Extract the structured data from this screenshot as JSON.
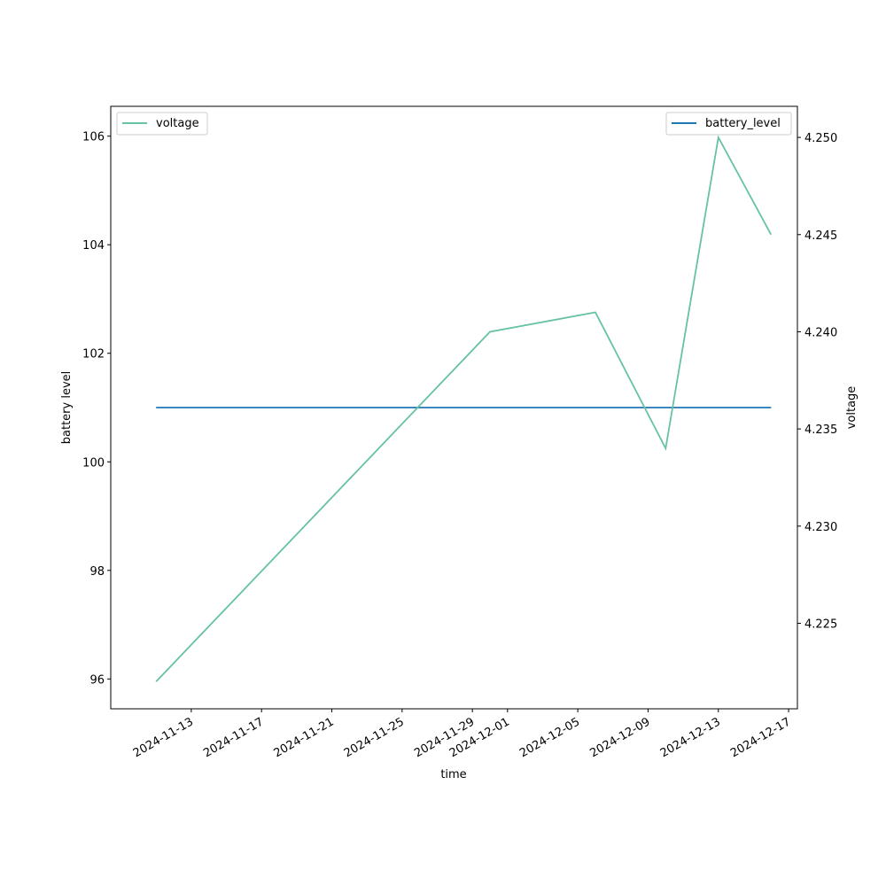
{
  "chart_data": {
    "type": "line",
    "xlabel": "time",
    "ylabel": "battery level",
    "y2label": "voltage",
    "x_type": "date",
    "xlim": [
      "2024-11-08T10:00",
      "2024-12-17T12:00"
    ],
    "ylim": [
      95.45,
      106.55
    ],
    "y2lim": [
      4.2206,
      4.2516
    ],
    "x_ticks": [
      "2024-11-13",
      "2024-11-17",
      "2024-11-21",
      "2024-11-25",
      "2024-11-29",
      "2024-12-01",
      "2024-12-05",
      "2024-12-09",
      "2024-12-13",
      "2024-12-17"
    ],
    "y_ticks": [
      "96",
      "98",
      "100",
      "102",
      "104",
      "106"
    ],
    "y2_ticks": [
      "4.225",
      "4.230",
      "4.235",
      "4.240",
      "4.245",
      "4.250"
    ],
    "grid": false,
    "series": [
      {
        "name": "battery_level",
        "axis": "left",
        "color": "#1f77b4",
        "x": [
          "2024-11-11",
          "2024-12-16"
        ],
        "values": [
          101,
          101
        ],
        "legend_position": "upper right"
      },
      {
        "name": "voltage",
        "axis": "right",
        "color": "#66c2a5",
        "x": [
          "2024-11-11",
          "2024-11-30",
          "2024-12-06",
          "2024-12-10",
          "2024-12-13",
          "2024-12-16"
        ],
        "values": [
          4.222,
          4.24,
          4.241,
          4.234,
          4.25,
          4.245
        ],
        "legend_position": "upper left"
      }
    ]
  }
}
